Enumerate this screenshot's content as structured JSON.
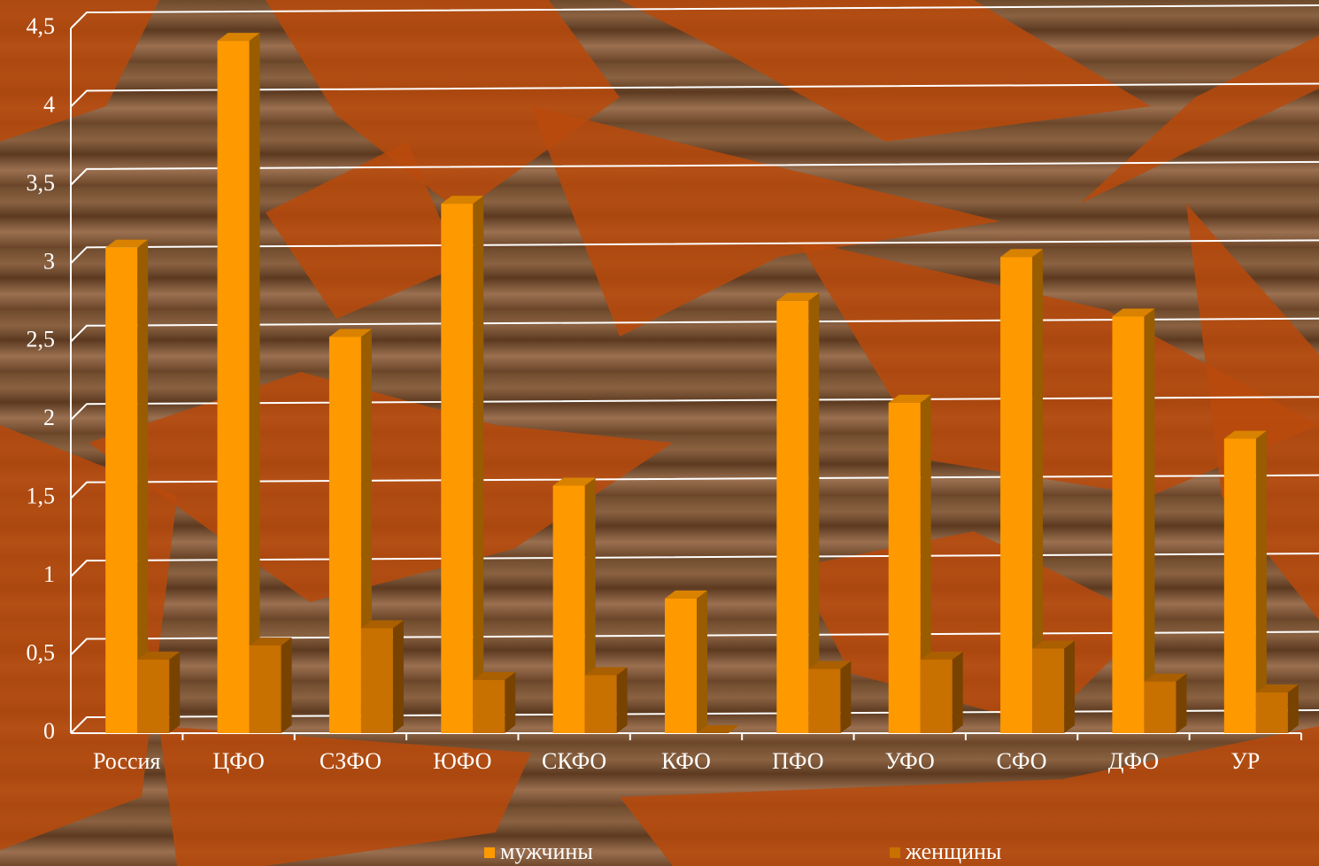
{
  "chart_data": {
    "type": "bar3d",
    "categories": [
      "Россия",
      "ЦФО",
      "СЗФО",
      "ЮФО",
      "СКФО",
      "КФО",
      "ПФО",
      "УФО",
      "СФО",
      "ДФО",
      "УР"
    ],
    "series": [
      {
        "name": "мужчины",
        "color": "#ff9900",
        "values": [
          3.1,
          4.42,
          2.53,
          3.38,
          1.58,
          0.86,
          2.76,
          2.11,
          3.04,
          2.66,
          1.88
        ]
      },
      {
        "name": "женщины",
        "color": "#c87000",
        "values": [
          0.47,
          0.56,
          0.67,
          0.34,
          0.37,
          0,
          0.41,
          0.47,
          0.54,
          0.33,
          0.26
        ]
      }
    ],
    "ylim": [
      0,
      4.5
    ],
    "yticks": [
      0,
      {
        "value": 0.5,
        "label": "0,5"
      },
      1,
      {
        "value": 1.5,
        "label": "1,5"
      },
      2,
      {
        "value": 2.5,
        "label": "2,5"
      },
      3,
      {
        "value": 3.5,
        "label": "3,5"
      },
      4,
      {
        "value": 4.5,
        "label": "4,5"
      }
    ],
    "grid": true
  }
}
